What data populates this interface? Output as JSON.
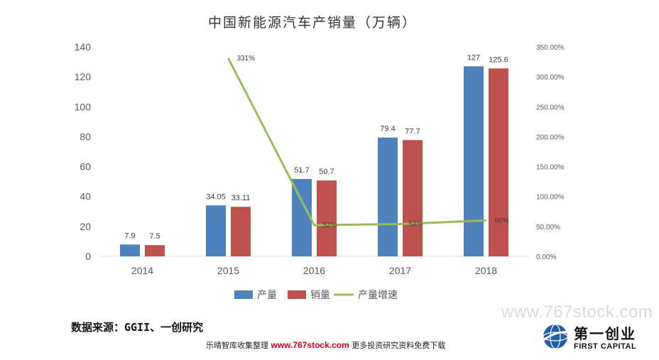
{
  "chart_data": {
    "type": "bar",
    "title": "中国新能源汽车产销量（万辆）",
    "categories": [
      "2014",
      "2015",
      "2016",
      "2017",
      "2018"
    ],
    "ylim": [
      0,
      140
    ],
    "yticks": [
      0,
      20,
      40,
      60,
      80,
      100,
      120,
      140
    ],
    "y2lim": [
      0,
      350
    ],
    "y2ticks": [
      "0.00%",
      "50.00%",
      "100.00%",
      "150.00%",
      "200.00%",
      "250.00%",
      "300.00%",
      "350.00%"
    ],
    "series": [
      {
        "name": "产量",
        "type": "bar",
        "axis": "left",
        "color": "#4f81bd",
        "values": [
          7.9,
          34.05,
          51.7,
          79.4,
          127
        ],
        "labels": [
          "7.9",
          "34.05",
          "51.7",
          "79.4",
          "127"
        ]
      },
      {
        "name": "销量",
        "type": "bar",
        "axis": "left",
        "color": "#c0504d",
        "values": [
          7.5,
          33.11,
          50.7,
          77.7,
          125.6
        ],
        "labels": [
          "7.5",
          "33.11",
          "50.7",
          "77.7",
          "125.6"
        ]
      },
      {
        "name": "产量增速",
        "type": "line",
        "axis": "right",
        "color": "#9bbb59",
        "values": [
          null,
          331,
          52,
          54,
          60
        ],
        "labels": [
          null,
          "331%",
          "52%",
          "54%",
          "60%"
        ]
      }
    ],
    "legend_position": "bottom",
    "grid": false
  },
  "source": "数据来源：GGII、一创研究",
  "footer": {
    "prefix": "乐晴智库收集整理",
    "url": "www.767stock.com",
    "suffix": "更多投资研究资料免费下载"
  },
  "watermark": "www.767stock.com",
  "logo": {
    "cn": "第一创业",
    "en": "FIRST CAPITAL",
    "icon": "globe-swoosh-icon"
  }
}
